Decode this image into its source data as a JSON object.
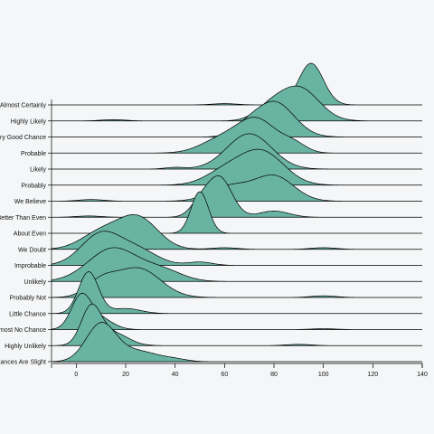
{
  "chart_data": {
    "type": "ridgeline",
    "title": "",
    "xlabel": "",
    "ylabel": "",
    "xlim": [
      -10,
      140
    ],
    "x_ticks": [
      0,
      20,
      40,
      60,
      80,
      100,
      120,
      140
    ],
    "fill_color": "#69b3a2",
    "stroke_color": "#000000",
    "categories": [
      "Almost Certainly",
      "Highly Likely",
      "Very Good Chance",
      "Probable",
      "Likely",
      "Probably",
      "We Believe",
      "Better Than Even",
      "About Even",
      "We Doubt",
      "Improbable",
      "Unlikely",
      "Probably Not",
      "Little Chance",
      "Almost No Chance",
      "Highly Unlikely",
      "Chances Are Slight"
    ],
    "distributions": [
      {
        "category": "Almost Certainly",
        "components": [
          [
            95,
            5,
            1.0
          ],
          [
            60,
            5,
            0.03
          ]
        ]
      },
      {
        "category": "Highly Likely",
        "components": [
          [
            90,
            8,
            0.8
          ],
          [
            78,
            6,
            0.25
          ],
          [
            15,
            5,
            0.03
          ]
        ]
      },
      {
        "category": "Very Good Chance",
        "components": [
          [
            80,
            8,
            0.85
          ],
          [
            68,
            5,
            0.15
          ]
        ]
      },
      {
        "category": "Probable",
        "components": [
          [
            73,
            8,
            0.8
          ],
          [
            58,
            8,
            0.3
          ],
          [
            88,
            5,
            0.2
          ]
        ]
      },
      {
        "category": "Likely",
        "components": [
          [
            70,
            9,
            0.85
          ],
          [
            40,
            4,
            0.04
          ]
        ]
      },
      {
        "category": "Probably",
        "components": [
          [
            75,
            9,
            0.8
          ],
          [
            60,
            8,
            0.3
          ]
        ]
      },
      {
        "category": "We Believe",
        "components": [
          [
            80,
            8,
            0.6
          ],
          [
            62,
            8,
            0.35
          ],
          [
            6,
            5,
            0.04
          ]
        ]
      },
      {
        "category": "Better Than Even",
        "components": [
          [
            58,
            5,
            0.95
          ],
          [
            50,
            4,
            0.3
          ],
          [
            80,
            6,
            0.15
          ],
          [
            5,
            5,
            0.03
          ]
        ]
      },
      {
        "category": "About Even",
        "components": [
          [
            50,
            3.5,
            1.0
          ]
        ]
      },
      {
        "category": "We Doubt",
        "components": [
          [
            25,
            8,
            0.75
          ],
          [
            10,
            8,
            0.4
          ],
          [
            60,
            5,
            0.04
          ],
          [
            100,
            5,
            0.04
          ]
        ]
      },
      {
        "category": "Improbable",
        "components": [
          [
            10,
            8,
            0.75
          ],
          [
            25,
            8,
            0.35
          ],
          [
            50,
            5,
            0.08
          ]
        ]
      },
      {
        "category": "Unlikely",
        "components": [
          [
            15,
            10,
            0.8
          ],
          [
            35,
            8,
            0.25
          ]
        ]
      },
      {
        "category": "Probably Not",
        "components": [
          [
            25,
            9,
            0.7
          ],
          [
            10,
            6,
            0.35
          ],
          [
            100,
            5,
            0.04
          ]
        ]
      },
      {
        "category": "Little Chance",
        "components": [
          [
            5,
            4,
            1.0
          ],
          [
            20,
            6,
            0.12
          ]
        ]
      },
      {
        "category": "Almost No Chance",
        "components": [
          [
            2,
            4,
            0.8
          ],
          [
            10,
            5,
            0.25
          ],
          [
            100,
            5,
            0.02
          ]
        ]
      },
      {
        "category": "Highly Unlikely",
        "components": [
          [
            6,
            4,
            0.9
          ],
          [
            15,
            6,
            0.3
          ],
          [
            90,
            5,
            0.03
          ]
        ]
      },
      {
        "category": "Chances Are Slight",
        "components": [
          [
            10,
            6,
            0.9
          ],
          [
            25,
            8,
            0.25
          ],
          [
            40,
            5,
            0.05
          ]
        ]
      }
    ]
  }
}
